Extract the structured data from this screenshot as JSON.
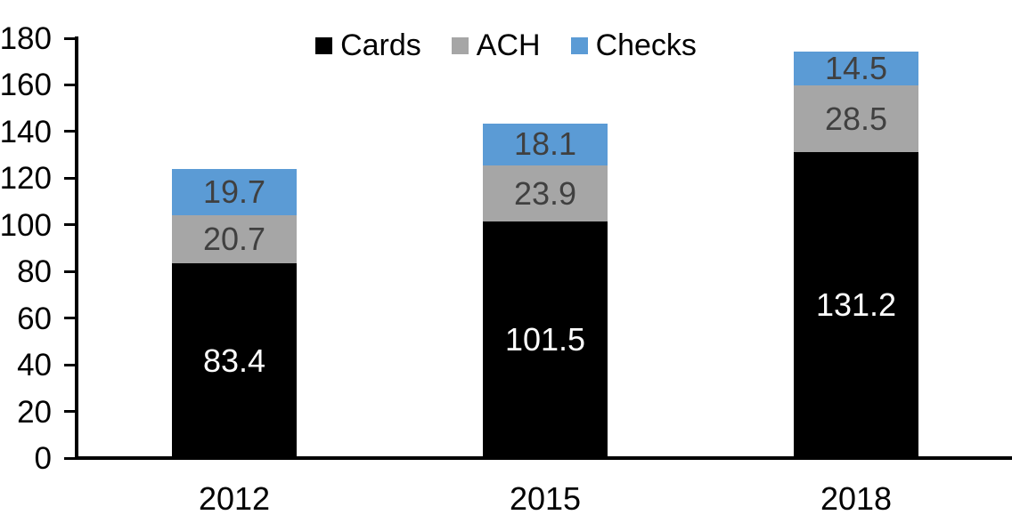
{
  "chart_data": {
    "type": "bar",
    "stacked": true,
    "title": "",
    "xlabel": "",
    "ylabel": "",
    "categories": [
      "2012",
      "2015",
      "2018"
    ],
    "series": [
      {
        "name": "Cards",
        "color": "#000000",
        "label_color": "#ffffff",
        "values": [
          83.4,
          101.5,
          131.2
        ]
      },
      {
        "name": "ACH",
        "color": "#A6A6A6",
        "label_color": "#404040",
        "values": [
          20.7,
          23.9,
          28.5
        ]
      },
      {
        "name": "Checks",
        "color": "#5B9BD5",
        "label_color": "#404040",
        "values": [
          19.7,
          18.1,
          14.5
        ]
      }
    ],
    "ylim": [
      0,
      180
    ],
    "yticks": [
      0,
      20,
      40,
      60,
      80,
      100,
      120,
      140,
      160,
      180
    ],
    "grid": false,
    "legend_position": "top-center",
    "axis_color": "#000000",
    "data_labels_shown": true
  }
}
